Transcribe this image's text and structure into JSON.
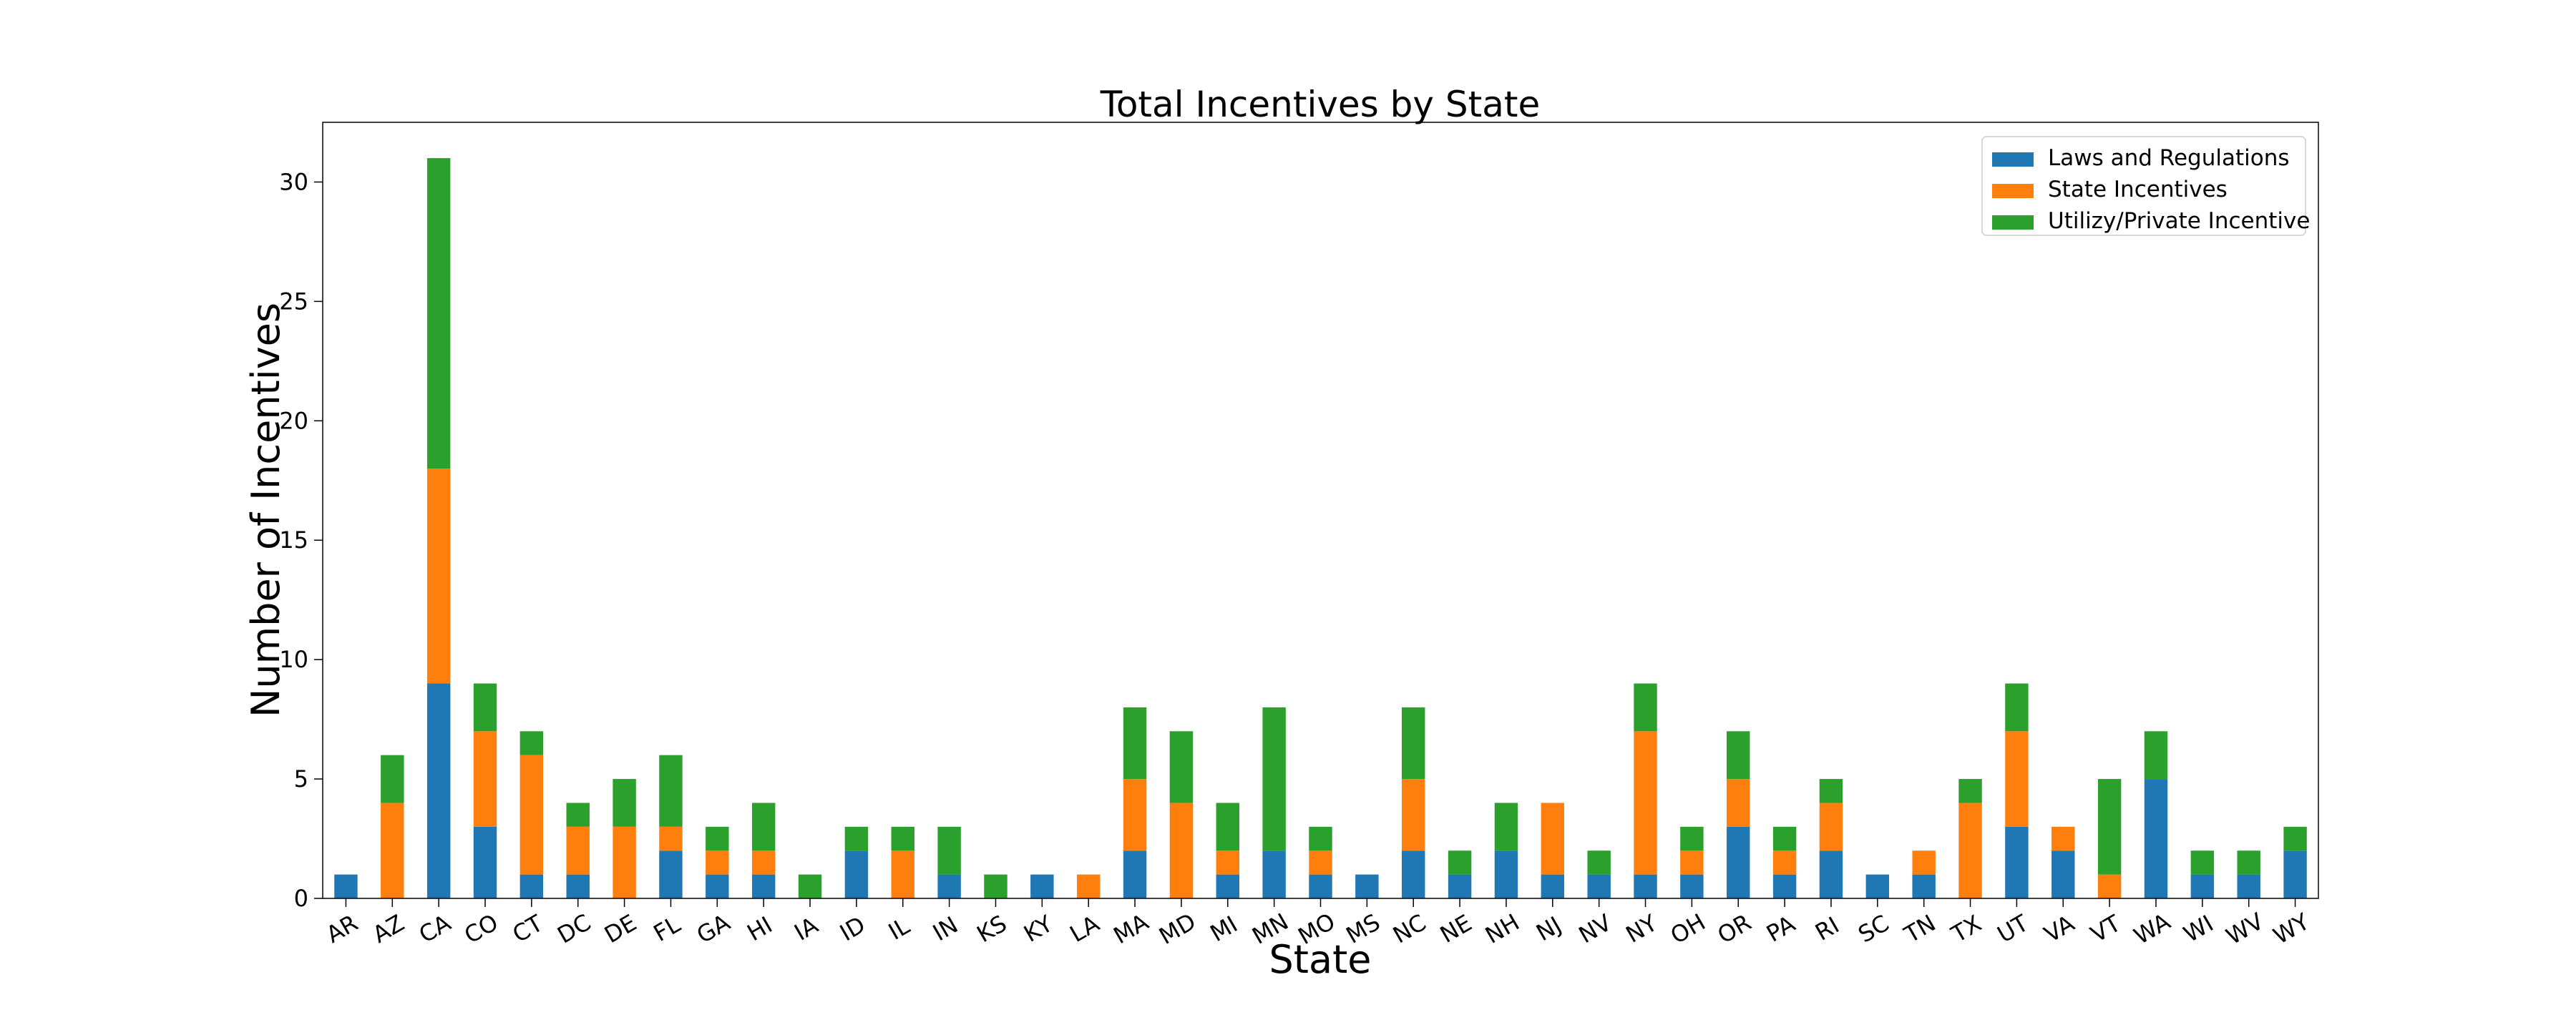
{
  "chart_data": {
    "type": "bar",
    "stacked": true,
    "title": "Total Incentives by State",
    "xlabel": "State",
    "ylabel": "Number of Incentives",
    "ylim": [
      0,
      32.5
    ],
    "yticks": [
      0,
      5,
      10,
      15,
      20,
      25,
      30
    ],
    "grid": false,
    "legend_position": "top-right",
    "categories": [
      "AR",
      "AZ",
      "CA",
      "CO",
      "CT",
      "DC",
      "DE",
      "FL",
      "GA",
      "HI",
      "IA",
      "ID",
      "IL",
      "IN",
      "KS",
      "KY",
      "LA",
      "MA",
      "MD",
      "MI",
      "MN",
      "MO",
      "MS",
      "NC",
      "NE",
      "NH",
      "NJ",
      "NV",
      "NY",
      "OH",
      "OR",
      "PA",
      "RI",
      "SC",
      "TN",
      "TX",
      "UT",
      "VA",
      "VT",
      "WA",
      "WI",
      "WV",
      "WY"
    ],
    "series": [
      {
        "name": "Laws and Regulations",
        "color": "#1f77b4",
        "values": [
          1,
          0,
          9,
          3,
          1,
          1,
          0,
          2,
          1,
          1,
          0,
          2,
          0,
          1,
          0,
          1,
          0,
          2,
          0,
          1,
          2,
          1,
          1,
          2,
          1,
          2,
          1,
          1,
          1,
          1,
          3,
          1,
          2,
          1,
          1,
          0,
          3,
          2,
          0,
          5,
          1,
          1,
          2
        ]
      },
      {
        "name": "State Incentives",
        "color": "#ff7f0e",
        "values": [
          0,
          4,
          9,
          4,
          5,
          2,
          3,
          1,
          1,
          1,
          0,
          0,
          2,
          0,
          0,
          0,
          1,
          3,
          4,
          1,
          0,
          1,
          0,
          3,
          0,
          0,
          3,
          0,
          6,
          1,
          2,
          1,
          2,
          0,
          1,
          4,
          4,
          1,
          1,
          0,
          0,
          0,
          0
        ]
      },
      {
        "name": "Utilizy/Private Incentive",
        "color": "#2ca02c",
        "values": [
          0,
          2,
          13,
          2,
          1,
          1,
          2,
          3,
          1,
          2,
          1,
          1,
          1,
          2,
          1,
          0,
          0,
          3,
          3,
          2,
          6,
          1,
          0,
          3,
          1,
          2,
          0,
          1,
          2,
          1,
          2,
          1,
          1,
          0,
          0,
          1,
          2,
          0,
          4,
          2,
          1,
          1,
          1
        ]
      }
    ]
  }
}
